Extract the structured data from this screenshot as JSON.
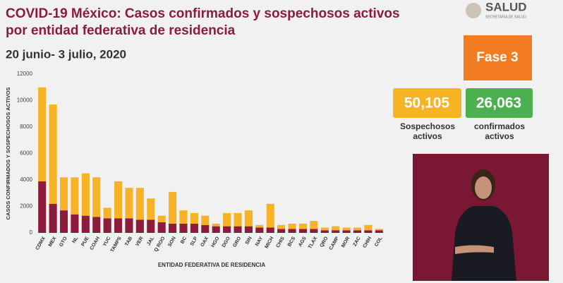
{
  "header": {
    "title_line1": "COVID-19 México: Casos confirmados y sospechosos activos",
    "title_line2": "por entidad federativa de residencia",
    "date": "20 junio- 3 julio, 2020",
    "logo": "SALUD",
    "logo_sub": "SECRETARÍA DE SALUD"
  },
  "phase": "Fase 3",
  "kpis": [
    {
      "value": "50,105"
    },
    {
      "value": "26,063"
    }
  ],
  "chart_data": {
    "type": "bar",
    "stacked": true,
    "y_label": "CASOS CONFIRMADOS Y SOSPECHOSOS ACTIVOS",
    "x_label": "ENTIDAD FEDERATIVA DE RESIDENCIA",
    "categories": [
      "CDMX",
      "MEX",
      "GTO",
      "NL",
      "PUE",
      "COAH",
      "YUC",
      "TAMPS",
      "TAB",
      "VER",
      "JAL",
      "Q ROO",
      "SON",
      "BC",
      "SLP",
      "OAX",
      "HGO",
      "DGO",
      "GRO",
      "SIN",
      "NAY",
      "MICH",
      "CHIS",
      "BCS",
      "AGS",
      "TLAX",
      "QRO",
      "CAMP",
      "MOR",
      "ZAC",
      "CHIH",
      "COL"
    ],
    "series": [
      {
        "name": "confirmados activos",
        "color": "#8c1b3c",
        "values": [
          3900,
          2200,
          1700,
          1400,
          1300,
          1200,
          1100,
          1100,
          1100,
          1000,
          1000,
          800,
          700,
          700,
          700,
          600,
          500,
          500,
          500,
          500,
          400,
          400,
          300,
          300,
          300,
          300,
          200,
          200,
          200,
          200,
          200,
          200
        ]
      },
      {
        "name": "Sospechosos activos",
        "color": "#f5b325",
        "values": [
          7100,
          7500,
          2500,
          2800,
          3200,
          3000,
          800,
          2800,
          2300,
          2400,
          1600,
          500,
          2400,
          1000,
          800,
          700,
          200,
          1000,
          1000,
          1200,
          200,
          1800,
          300,
          400,
          400,
          600,
          200,
          300,
          200,
          200,
          400,
          100
        ]
      }
    ],
    "ylim": [
      0,
      12000
    ],
    "yticks": [
      0,
      2000,
      4000,
      6000,
      8000,
      10000,
      12000
    ],
    "grid": false
  }
}
